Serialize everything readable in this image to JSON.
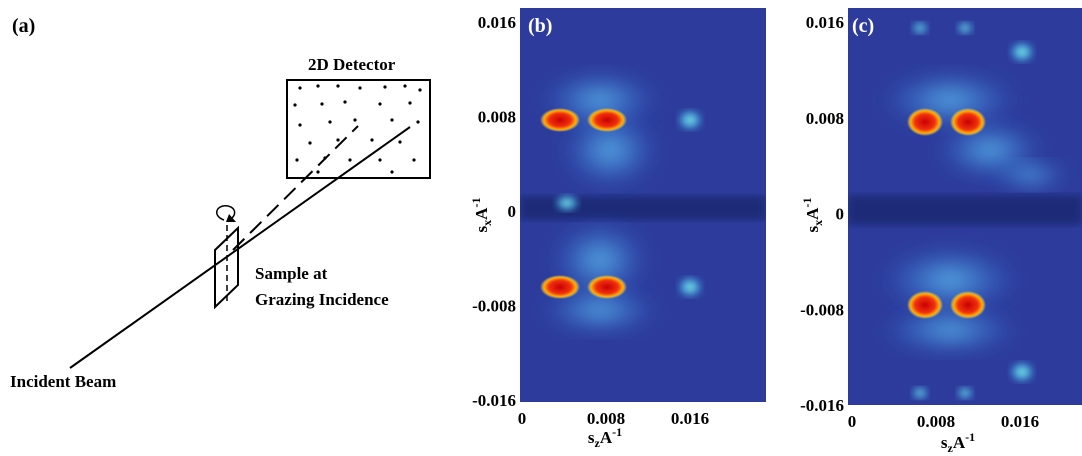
{
  "panel_a": {
    "label": "(a)",
    "detector": "2D Detector",
    "sample": [
      "Sample at",
      "Grazing Incidence"
    ],
    "beam": "Incident Beam"
  },
  "panels": [
    {
      "label": "(b)",
      "yticks": [
        0.016,
        0.008,
        0,
        -0.008,
        -0.016
      ],
      "xticks": [
        0,
        0.008,
        0.016
      ],
      "ylabel": {
        "base": "s",
        "sub": "x",
        "unit": "A",
        "sup": "-1"
      },
      "xlabel": {
        "base": "s",
        "sub": "z",
        "unit": "A",
        "sup": "-1"
      }
    },
    {
      "label": "(c)",
      "yticks": [
        0.016,
        0.008,
        0,
        -0.008,
        -0.016
      ],
      "xticks": [
        0,
        0.008,
        0.016
      ],
      "ylabel": {
        "base": "s",
        "sub": "x",
        "unit": "A",
        "sup": "-1"
      },
      "xlabel": {
        "base": "s",
        "sub": "z",
        "unit": "A",
        "sup": "-1"
      }
    }
  ]
}
